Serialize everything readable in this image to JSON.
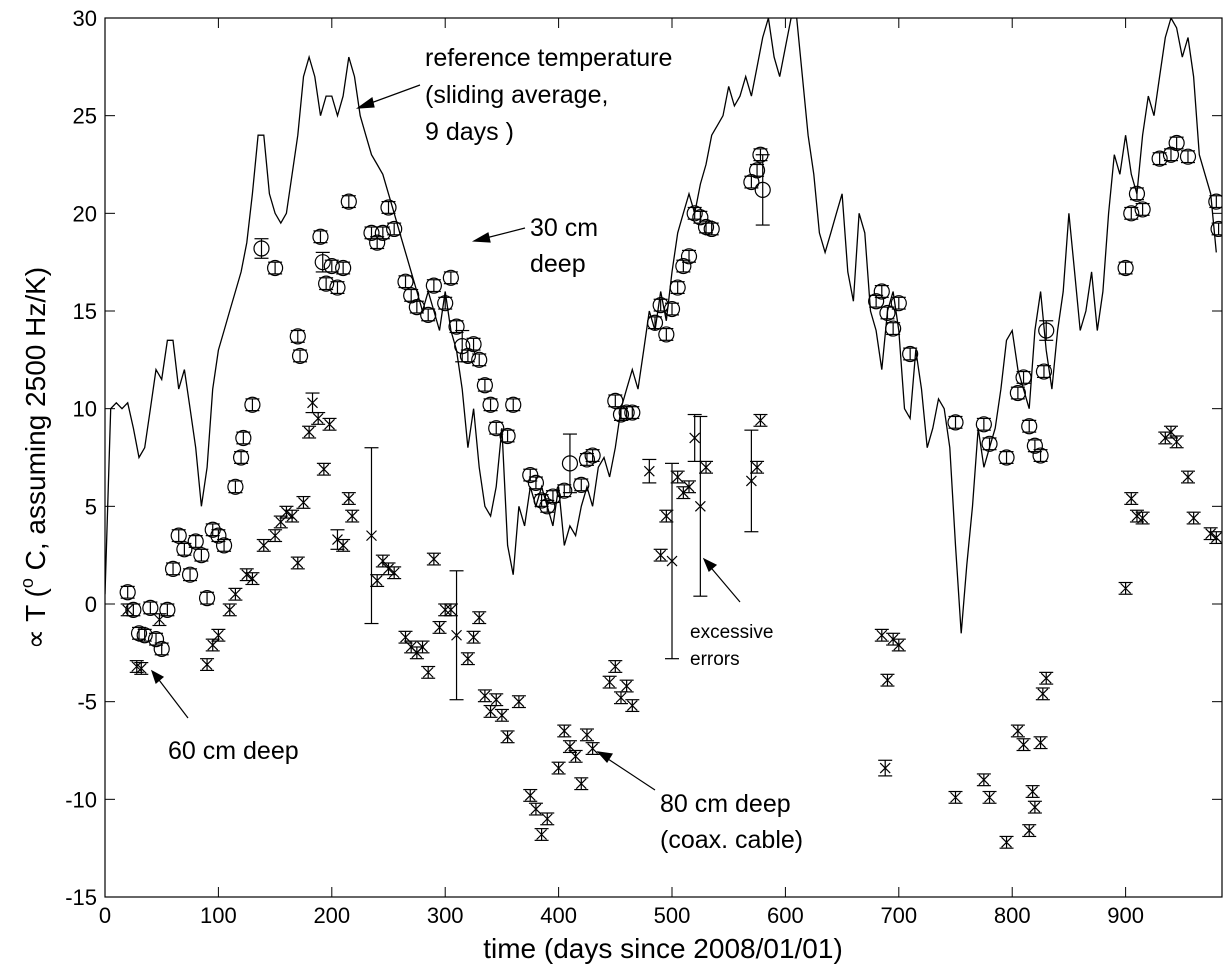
{
  "chart_data": {
    "type": "scatter",
    "xlabel": "time (days since 2008/01/01)",
    "ylabel": [
      "∝ T (",
      "o",
      " C, assuming 2500 Hz/K)"
    ],
    "xlim": [
      0,
      985
    ],
    "ylim": [
      -15,
      30
    ],
    "xticks": [
      0,
      100,
      200,
      300,
      400,
      500,
      600,
      700,
      800,
      900
    ],
    "yticks": [
      -15,
      -10,
      -5,
      0,
      5,
      10,
      15,
      20,
      25,
      30
    ],
    "annotations": [
      {
        "lines": [
          "reference temperature",
          "(sliding average,",
          "9 days )"
        ]
      },
      {
        "lines": [
          "30 cm",
          "deep"
        ]
      },
      {
        "lines": [
          "60 cm deep"
        ]
      },
      {
        "lines": [
          "80 cm deep",
          "(coax. cable)"
        ]
      },
      {
        "lines": [
          "excessive",
          "errors"
        ]
      }
    ],
    "series": [
      {
        "style": "line",
        "color": "#000000",
        "x": [
          0,
          5,
          10,
          15,
          20,
          25,
          30,
          35,
          40,
          45,
          50,
          55,
          60,
          65,
          70,
          75,
          80,
          85,
          90,
          95,
          100,
          105,
          110,
          115,
          120,
          125,
          130,
          135,
          140,
          145,
          150,
          155,
          160,
          165,
          170,
          175,
          180,
          185,
          190,
          195,
          200,
          205,
          210,
          215,
          220,
          225,
          230,
          235,
          240,
          245,
          250,
          255,
          260,
          265,
          270,
          275,
          280,
          285,
          290,
          295,
          300,
          305,
          310,
          315,
          320,
          325,
          330,
          335,
          340,
          345,
          350,
          355,
          360,
          365,
          370,
          375,
          380,
          385,
          390,
          395,
          400,
          405,
          410,
          415,
          420,
          425,
          430,
          435,
          440,
          445,
          450,
          455,
          460,
          465,
          470,
          475,
          480,
          485,
          490,
          495,
          500,
          505,
          510,
          515,
          520,
          525,
          530,
          535,
          540,
          545,
          550,
          555,
          560,
          565,
          570,
          575,
          580,
          585,
          590,
          595,
          600,
          605,
          610,
          615,
          620,
          625,
          630,
          635,
          640,
          645,
          650,
          655,
          660,
          665,
          670,
          675,
          680,
          685,
          690,
          695,
          700,
          705,
          710,
          715,
          720,
          725,
          730,
          735,
          740,
          745,
          750,
          755,
          760,
          765,
          770,
          775,
          780,
          785,
          790,
          795,
          800,
          805,
          810,
          815,
          820,
          825,
          830,
          835,
          840,
          845,
          850,
          855,
          860,
          865,
          870,
          875,
          880,
          885,
          890,
          895,
          900,
          905,
          910,
          915,
          920,
          925,
          930,
          935,
          940,
          945,
          950,
          955,
          960,
          965,
          970,
          975,
          980
        ],
        "values": [
          0.5,
          10,
          10.3,
          10,
          10.3,
          9,
          7.5,
          8,
          10,
          12,
          11.5,
          13.5,
          13.5,
          11,
          12,
          10,
          8,
          5,
          7,
          11,
          13,
          14,
          15,
          16,
          17,
          18.5,
          21,
          24,
          24,
          21,
          20,
          19.5,
          20,
          22,
          24,
          27,
          28,
          27,
          25,
          26,
          26,
          25,
          26,
          28,
          27,
          25,
          24,
          23,
          22.5,
          22,
          21,
          20,
          19,
          18,
          17,
          16,
          15,
          16,
          15,
          14,
          16,
          14,
          13,
          11,
          8,
          10,
          7,
          5,
          4.5,
          6,
          9,
          3,
          1.5,
          5,
          4,
          6,
          5,
          6,
          5,
          4,
          6,
          3,
          4,
          3.5,
          5,
          6,
          5,
          7,
          7.5,
          6.5,
          8,
          10,
          11,
          12,
          11,
          13,
          15,
          14,
          16,
          14.5,
          17,
          19,
          20,
          21,
          20,
          21.5,
          22.5,
          24,
          24.5,
          25,
          26.5,
          25.5,
          26,
          27,
          26,
          27.5,
          29,
          30,
          28,
          27,
          28.5,
          30,
          30,
          27,
          24,
          22,
          19,
          18,
          19,
          20,
          21,
          17,
          15.5,
          20,
          19,
          15,
          14,
          12,
          15,
          16,
          14,
          10,
          9.5,
          13,
          11,
          8,
          9,
          10.5,
          10,
          8,
          3,
          -1.5,
          2,
          5,
          9,
          7,
          8,
          9,
          11,
          13.5,
          14,
          12,
          11,
          10,
          14,
          16,
          13,
          11,
          14,
          16,
          20,
          17,
          14,
          15,
          17,
          14,
          16,
          20,
          23,
          22,
          24,
          22,
          21,
          24,
          26,
          25,
          27,
          29,
          30,
          29.5,
          28,
          29,
          27,
          23,
          22,
          21,
          18
        ]
      },
      {
        "style": "marker",
        "marker": "circle",
        "color": "#000000",
        "x": [
          20,
          25,
          30,
          35,
          40,
          45,
          50,
          55,
          60,
          65,
          70,
          75,
          80,
          85,
          90,
          95,
          100,
          105,
          115,
          120,
          122,
          130,
          138,
          150,
          170,
          172,
          190,
          192,
          195,
          200,
          205,
          210,
          215,
          235,
          240,
          245,
          250,
          255,
          265,
          270,
          275,
          285,
          290,
          300,
          305,
          310,
          315,
          320,
          325,
          330,
          335,
          340,
          345,
          355,
          360,
          375,
          380,
          385,
          390,
          395,
          405,
          410,
          420,
          425,
          430,
          450,
          455,
          460,
          465,
          485,
          490,
          495,
          500,
          505,
          510,
          515,
          520,
          525,
          530,
          535,
          570,
          575,
          578,
          580,
          680,
          685,
          690,
          695,
          700,
          710,
          750,
          775,
          780,
          795,
          805,
          810,
          815,
          820,
          825,
          828,
          830,
          900,
          905,
          910,
          915,
          930,
          940,
          945,
          955,
          980,
          982
        ],
        "values": [
          0.6,
          -0.3,
          -1.5,
          -1.6,
          -0.2,
          -1.8,
          -2.3,
          -0.3,
          1.8,
          3.5,
          2.8,
          1.5,
          3.2,
          2.5,
          0.3,
          3.8,
          3.5,
          3,
          6,
          7.5,
          8.5,
          10.2,
          18.2,
          17.2,
          13.7,
          12.7,
          18.8,
          17.5,
          16.4,
          17.3,
          16.2,
          17.2,
          20.6,
          19,
          18.5,
          19,
          20.3,
          19.2,
          16.5,
          15.8,
          15.2,
          14.8,
          16.3,
          15.4,
          16.7,
          14.2,
          13.2,
          12.7,
          13.3,
          12.5,
          11.2,
          10.2,
          9,
          8.6,
          10.2,
          6.6,
          6.2,
          5.3,
          5,
          5.5,
          5.8,
          7.2,
          6.1,
          7.4,
          7.6,
          10.4,
          9.7,
          9.8,
          9.8,
          14.4,
          15.3,
          13.8,
          15.1,
          16.2,
          17.3,
          17.8,
          20,
          19.8,
          19.3,
          19.2,
          21.6,
          22.2,
          23,
          21.2,
          15.5,
          16,
          14.9,
          14.1,
          15.4,
          12.8,
          9.3,
          9.2,
          8.2,
          7.5,
          10.8,
          11.6,
          9.1,
          8.1,
          7.6,
          11.9,
          14,
          17.2,
          20,
          21,
          20.2,
          22.8,
          23,
          23.6,
          22.9,
          20.6,
          19.2
        ],
        "errors": [
          0.3,
          0.3,
          0.3,
          0.3,
          0.3,
          0.3,
          0.3,
          0.3,
          0.3,
          0.3,
          0.3,
          0.3,
          0.3,
          0.3,
          0.3,
          0.3,
          0.3,
          0.3,
          0.3,
          0.3,
          0.3,
          0.3,
          0.5,
          0.3,
          0.3,
          0.3,
          0.3,
          0.5,
          0.3,
          0.3,
          0.3,
          0.3,
          0.3,
          0.3,
          0.3,
          0.3,
          0.3,
          0.3,
          0.3,
          0.3,
          0.3,
          0.3,
          0.3,
          0.3,
          0.3,
          0.3,
          0.8,
          0.3,
          0.3,
          0.3,
          0.3,
          0.3,
          0.3,
          0.3,
          0.3,
          0.3,
          0.3,
          0.3,
          0.3,
          0.3,
          0.3,
          1.5,
          0.3,
          0.3,
          0.3,
          0.3,
          0.3,
          0.3,
          0.3,
          0.3,
          0.3,
          0.3,
          0.3,
          0.3,
          0.3,
          0.3,
          0.3,
          0.3,
          0.3,
          0.3,
          0.3,
          0.3,
          0.3,
          1.8,
          0.3,
          0.3,
          0.3,
          0.3,
          0.3,
          0.3,
          0.3,
          0.3,
          0.3,
          0.3,
          0.3,
          0.3,
          0.3,
          0.3,
          0.3,
          0.3,
          0.5,
          0.3,
          0.3,
          0.3,
          0.3,
          0.3,
          0.3,
          0.3,
          0.3,
          0.3,
          0.3
        ]
      },
      {
        "style": "marker",
        "marker": "x",
        "color": "#000000",
        "x": [
          20,
          28,
          32,
          48,
          90,
          95,
          100,
          110,
          115,
          125,
          130,
          140,
          150,
          155,
          160,
          165,
          170,
          175,
          180,
          183,
          188,
          193,
          198,
          205,
          210,
          215,
          218,
          235,
          240,
          245,
          250,
          255,
          265,
          270,
          275,
          280,
          285,
          290,
          295,
          300,
          305,
          310,
          320,
          325,
          330,
          335,
          340,
          345,
          350,
          355,
          365,
          375,
          380,
          385,
          390,
          400,
          405,
          410,
          415,
          420,
          425,
          430,
          445,
          450,
          455,
          460,
          465,
          480,
          490,
          495,
          500,
          505,
          510,
          515,
          520,
          525,
          530,
          570,
          575,
          578,
          685,
          688,
          690,
          695,
          700,
          750,
          775,
          780,
          795,
          805,
          810,
          815,
          818,
          820,
          825,
          827,
          830,
          900,
          905,
          910,
          915,
          935,
          940,
          945,
          955,
          960,
          975,
          980
        ],
        "values": [
          -0.3,
          -3.2,
          -3.3,
          -0.8,
          -3.1,
          -2.1,
          -1.6,
          -0.3,
          0.5,
          1.5,
          1.3,
          3,
          3.5,
          4.2,
          4.7,
          4.5,
          2.1,
          5.2,
          8.8,
          10.3,
          9.5,
          6.9,
          9.2,
          3.3,
          3,
          5.4,
          4.5,
          3.5,
          1.2,
          2.2,
          1.8,
          1.6,
          -1.7,
          -2.2,
          -2.5,
          -2.2,
          -3.5,
          2.3,
          -1.2,
          -0.3,
          -0.3,
          -1.6,
          -2.8,
          -1.7,
          -0.7,
          -4.7,
          -5.5,
          -4.9,
          -5.7,
          -6.8,
          -5,
          -9.8,
          -10.5,
          -11.8,
          -11,
          -8.4,
          -6.5,
          -7.3,
          -7.8,
          -9.2,
          -6.7,
          -7.4,
          -4,
          -3.2,
          -4.8,
          -4.2,
          -5.2,
          6.8,
          2.5,
          4.5,
          2.2,
          6.5,
          5.7,
          6,
          8.5,
          5,
          7,
          6.3,
          7,
          9.4,
          -1.6,
          -8.4,
          -3.9,
          -1.8,
          -2.1,
          -9.9,
          -9,
          -9.9,
          -12.2,
          -6.5,
          -7.2,
          -11.6,
          -9.6,
          -10.4,
          -7.1,
          -4.6,
          -3.8,
          0.8,
          5.4,
          4.5,
          4.4,
          8.5,
          8.8,
          8.3,
          6.5,
          4.4,
          3.6,
          3.4
        ],
        "errors": [
          0.3,
          0.3,
          0.3,
          0.3,
          0.3,
          0.3,
          0.3,
          0.3,
          0.3,
          0.3,
          0.3,
          0.3,
          0.3,
          0.3,
          0.3,
          0.3,
          0.3,
          0.3,
          0.3,
          0.5,
          0.3,
          0.3,
          0.3,
          0.5,
          0.3,
          0.3,
          0.3,
          4.5,
          0.3,
          0.3,
          0.3,
          0.3,
          0.3,
          0.3,
          0.3,
          0.3,
          0.3,
          0.3,
          0.3,
          0.3,
          0.3,
          3.3,
          0.3,
          0.3,
          0.3,
          0.3,
          0.3,
          0.3,
          0.3,
          0.3,
          0.3,
          0.3,
          0.3,
          0.3,
          0.3,
          0.3,
          0.3,
          0.3,
          0.3,
          0.3,
          0.3,
          0.3,
          0.3,
          0.3,
          0.3,
          0.3,
          0.3,
          0.6,
          0.3,
          0.3,
          5,
          0.3,
          0.3,
          0.3,
          1.2,
          4.6,
          0.3,
          2.6,
          0.3,
          0.3,
          0.3,
          0.4,
          0.3,
          0.3,
          0.3,
          0.3,
          0.3,
          0.3,
          0.3,
          0.3,
          0.3,
          0.3,
          0.3,
          0.3,
          0.3,
          0.3,
          0.3,
          0.3,
          0.3,
          0.3,
          0.3,
          0.3,
          0.3,
          0.3,
          0.3,
          0.3,
          0.3,
          0.3
        ]
      }
    ]
  }
}
